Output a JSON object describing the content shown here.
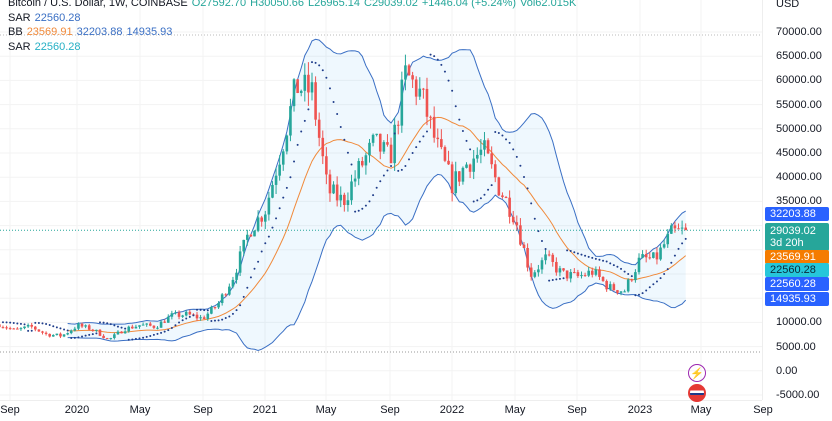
{
  "header": {
    "title": "Bitcoin / U.S. Dollar, 1W, COINBASE",
    "open": "O27592.70",
    "high": "H30050.66",
    "low": "L26965.14",
    "close": "C29039.02",
    "change": "+1446.04 (+5.24%)",
    "volume": "Vol62.015K"
  },
  "indicators": [
    {
      "name": "SAR",
      "values": [
        "22560.28"
      ]
    },
    {
      "name": "BB",
      "values": [
        "23569.91",
        "32203.88",
        "14935.93"
      ]
    },
    {
      "name": "SAR",
      "values": [
        "22560.28"
      ]
    }
  ],
  "price_axis": {
    "currency": "USD",
    "labels": [
      "70000.00",
      "65000.00",
      "60000.00",
      "55000.00",
      "50000.00",
      "45000.00",
      "40000.00",
      "35000.00",
      "10000.00",
      "5000.00",
      "0.00",
      "-5000.00"
    ]
  },
  "badges": {
    "bb_upper": "32203.88",
    "last_price": "29039.02",
    "countdown": "3d 20h",
    "bb_basis": "23569.91",
    "sar1": "22560.28",
    "sar2": "22560.28",
    "bb_lower": "14935.93"
  },
  "colors": {
    "up": "#26a69a",
    "down": "#ef5350",
    "bb_band": "#3a6fc4",
    "bb_basis": "#f08a3b",
    "sar": "#1f3d8a",
    "teal": "#26b0c5"
  },
  "chart_data": {
    "type": "candlestick",
    "title": "Bitcoin / U.S. Dollar, 1W, COINBASE",
    "x_labels": [
      "Sep",
      "2020",
      "May",
      "Sep",
      "2021",
      "May",
      "Sep",
      "2022",
      "May",
      "Sep",
      "2023",
      "May",
      "Sep"
    ],
    "ylim": [
      -5000,
      72000
    ],
    "monthly_close_start": "2019-08",
    "monthly_close": [
      9600,
      8300,
      9150,
      7550,
      7200,
      9350,
      8550,
      6400,
      8630,
      9450,
      9140,
      11350,
      11650,
      10780,
      13800,
      19700,
      29000,
      33100,
      45200,
      58800,
      57700,
      37300,
      35000,
      41500,
      47100,
      43800,
      61300,
      57000,
      46300,
      38500,
      43200,
      45500,
      37700,
      31800,
      19900,
      23300,
      20000,
      19400,
      20500,
      17200,
      16500,
      23100,
      23100,
      28500,
      29039
    ],
    "last_price": 29039.02
  }
}
